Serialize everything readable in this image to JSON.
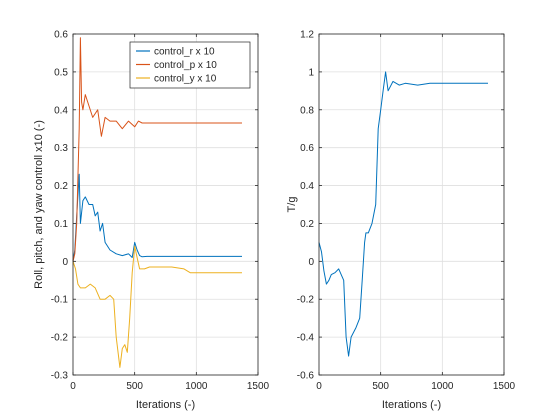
{
  "colors": {
    "control_r": "#0072BD",
    "control_p": "#D95319",
    "control_y": "#EDB120",
    "tr": "#0072BD",
    "grid": "#dfdfdf",
    "axis": "#262626"
  },
  "chart_data": [
    {
      "type": "line",
      "xlabel": "Iterations (-)",
      "ylabel": "Roll, pitch, and yaw controll x10 (-)",
      "xlim": [
        0,
        1500
      ],
      "ylim": [
        -0.3,
        0.6
      ],
      "x_ticks": [
        0,
        500,
        1000,
        1500
      ],
      "y_ticks": [
        -0.3,
        -0.2,
        -0.1,
        0,
        0.1,
        0.2,
        0.3,
        0.4,
        0.5,
        0.6
      ],
      "x_tick_labels": [
        "0",
        "500",
        "1000",
        "1500"
      ],
      "y_tick_labels": [
        "-0.3",
        "-0.2",
        "-0.1",
        "0",
        "0.1",
        "0.2",
        "0.3",
        "0.4",
        "0.5",
        "0.6"
      ],
      "grid": true,
      "legend_position": "top-right",
      "series": [
        {
          "name": "control_r x 10",
          "x": [
            0,
            15,
            30,
            50,
            60,
            80,
            100,
            130,
            160,
            180,
            200,
            220,
            240,
            260,
            300,
            350,
            400,
            450,
            480,
            500,
            520,
            540,
            560,
            600,
            700,
            800,
            900,
            1000,
            1100,
            1200,
            1300,
            1370
          ],
          "y": [
            0,
            0.03,
            0.12,
            0.23,
            0.1,
            0.16,
            0.17,
            0.15,
            0.15,
            0.12,
            0.13,
            0.08,
            0.1,
            0.05,
            0.03,
            0.02,
            0.015,
            0.02,
            0.01,
            0.05,
            0.03,
            0.015,
            0.012,
            0.013,
            0.013,
            0.013,
            0.013,
            0.013,
            0.013,
            0.013,
            0.013,
            0.013
          ]
        },
        {
          "name": "control_p x 10",
          "x": [
            0,
            15,
            30,
            50,
            60,
            70,
            80,
            100,
            130,
            160,
            200,
            230,
            260,
            300,
            350,
            400,
            450,
            500,
            530,
            560,
            600,
            700,
            800,
            900,
            1000,
            1100,
            1200,
            1300,
            1370
          ],
          "y": [
            0,
            0.02,
            0.1,
            0.35,
            0.59,
            0.42,
            0.4,
            0.44,
            0.41,
            0.38,
            0.4,
            0.33,
            0.38,
            0.37,
            0.37,
            0.35,
            0.37,
            0.355,
            0.37,
            0.365,
            0.365,
            0.365,
            0.365,
            0.365,
            0.365,
            0.365,
            0.365,
            0.365,
            0.365
          ]
        },
        {
          "name": "control_y x 10",
          "x": [
            0,
            20,
            40,
            60,
            80,
            100,
            140,
            180,
            220,
            260,
            300,
            330,
            350,
            380,
            400,
            420,
            440,
            460,
            480,
            500,
            520,
            540,
            580,
            620,
            700,
            800,
            900,
            950,
            1000,
            1100,
            1200,
            1300,
            1370
          ],
          "y": [
            0,
            -0.02,
            -0.06,
            -0.07,
            -0.07,
            -0.07,
            -0.06,
            -0.07,
            -0.1,
            -0.1,
            -0.09,
            -0.1,
            -0.2,
            -0.28,
            -0.23,
            -0.22,
            -0.24,
            -0.15,
            -0.03,
            0.04,
            0.01,
            -0.02,
            -0.02,
            -0.015,
            -0.015,
            -0.015,
            -0.02,
            -0.03,
            -0.03,
            -0.03,
            -0.03,
            -0.03,
            -0.03
          ]
        }
      ]
    },
    {
      "type": "line",
      "xlabel": "Iterations (-)",
      "ylabel": "T/g",
      "xlim": [
        0,
        1500
      ],
      "ylim": [
        -0.6,
        1.2
      ],
      "x_ticks": [
        0,
        500,
        1000,
        1500
      ],
      "y_ticks": [
        -0.6,
        -0.4,
        -0.2,
        0,
        0.2,
        0.4,
        0.6,
        0.8,
        1,
        1.2
      ],
      "x_tick_labels": [
        "0",
        "500",
        "1000",
        "1500"
      ],
      "y_tick_labels": [
        "-0.6",
        "-0.4",
        "-0.2",
        "0",
        "0.2",
        "0.4",
        "0.6",
        "0.8",
        "1",
        "1.2"
      ],
      "grid": true,
      "series": [
        {
          "x": [
            0,
            20,
            40,
            60,
            80,
            100,
            130,
            160,
            200,
            220,
            240,
            260,
            300,
            330,
            350,
            370,
            380,
            400,
            430,
            460,
            480,
            500,
            520,
            540,
            560,
            600,
            650,
            700,
            800,
            900,
            1000,
            1100,
            1200,
            1300,
            1370
          ],
          "y": [
            0.1,
            0.05,
            -0.05,
            -0.12,
            -0.1,
            -0.07,
            -0.06,
            -0.04,
            -0.1,
            -0.4,
            -0.5,
            -0.4,
            -0.35,
            -0.3,
            -0.1,
            0.1,
            0.15,
            0.15,
            0.2,
            0.3,
            0.7,
            0.8,
            0.9,
            1.0,
            0.9,
            0.95,
            0.93,
            0.94,
            0.93,
            0.94,
            0.94,
            0.94,
            0.94,
            0.94,
            0.94
          ]
        }
      ]
    }
  ]
}
